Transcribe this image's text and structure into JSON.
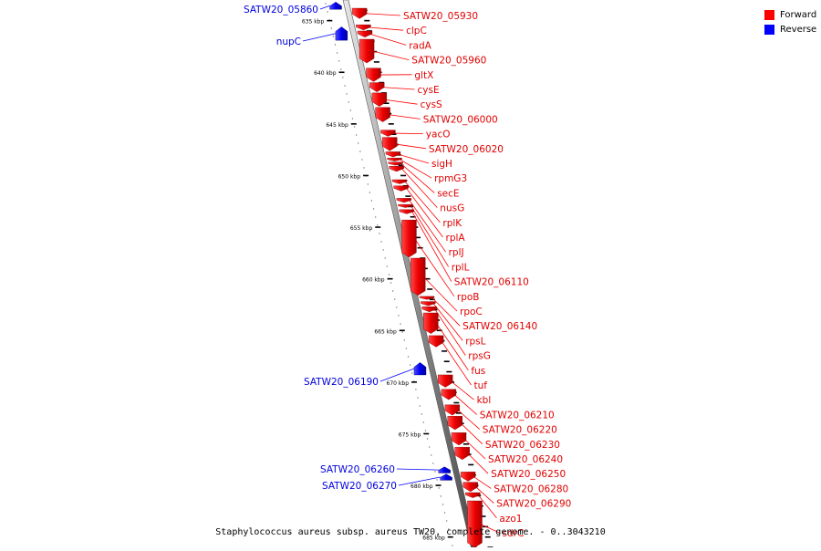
{
  "legend": {
    "forward_label": "Forward",
    "reverse_label": "Reverse",
    "forward_color": "#ff0000",
    "reverse_color": "#0000ff"
  },
  "caption": "Staphylococcus aureus subsp. aureus TW20, complete genome. - 0..3043210",
  "axis": {
    "unit": "kbp",
    "start_kbp": 633,
    "end_kbp": 686,
    "ticks_kbp": [
      635,
      640,
      645,
      650,
      655,
      660,
      665,
      670,
      675,
      680,
      685
    ]
  },
  "forward_genes": [
    {
      "name": "SATW20_05930",
      "start_kbp": 633.8,
      "end_kbp": 634.8
    },
    {
      "name": "clpC",
      "start_kbp": 635.4,
      "end_kbp": 635.9
    },
    {
      "name": "radA",
      "start_kbp": 636.0,
      "end_kbp": 636.6
    },
    {
      "name": "SATW20_05960",
      "start_kbp": 636.8,
      "end_kbp": 639.1
    },
    {
      "name": "gltX",
      "start_kbp": 639.6,
      "end_kbp": 640.9
    },
    {
      "name": "cysE",
      "start_kbp": 641.0,
      "end_kbp": 641.9
    },
    {
      "name": "cysS",
      "start_kbp": 642.0,
      "end_kbp": 643.3
    },
    {
      "name": "SATW20_06000",
      "start_kbp": 643.4,
      "end_kbp": 644.8
    },
    {
      "name": "yacO",
      "start_kbp": 645.6,
      "end_kbp": 646.2
    },
    {
      "name": "SATW20_06020",
      "start_kbp": 646.3,
      "end_kbp": 647.6
    },
    {
      "name": "sigH",
      "start_kbp": 647.7,
      "end_kbp": 648.2
    },
    {
      "name": "rpmG3",
      "start_kbp": 648.3,
      "end_kbp": 648.6
    },
    {
      "name": "secE",
      "start_kbp": 648.7,
      "end_kbp": 649.0
    },
    {
      "name": "nusG",
      "start_kbp": 649.1,
      "end_kbp": 649.6
    },
    {
      "name": "rplK",
      "start_kbp": 650.4,
      "end_kbp": 650.8
    },
    {
      "name": "rplA",
      "start_kbp": 651.0,
      "end_kbp": 651.5
    },
    {
      "name": "rplJ",
      "start_kbp": 652.2,
      "end_kbp": 652.6
    },
    {
      "name": "rplL",
      "start_kbp": 652.8,
      "end_kbp": 653.1
    },
    {
      "name": "SATW20_06110",
      "start_kbp": 653.3,
      "end_kbp": 653.7
    },
    {
      "name": "rpoB",
      "start_kbp": 654.3,
      "end_kbp": 657.9
    },
    {
      "name": "rpoC",
      "start_kbp": 658.0,
      "end_kbp": 661.6
    },
    {
      "name": "SATW20_06140",
      "start_kbp": 661.7,
      "end_kbp": 662.0
    },
    {
      "name": "rpsL",
      "start_kbp": 662.2,
      "end_kbp": 662.6
    },
    {
      "name": "rpsG",
      "start_kbp": 662.7,
      "end_kbp": 663.2
    },
    {
      "name": "fus",
      "start_kbp": 663.3,
      "end_kbp": 665.3
    },
    {
      "name": "tuf",
      "start_kbp": 665.5,
      "end_kbp": 666.6
    },
    {
      "name": "kbl",
      "start_kbp": 669.3,
      "end_kbp": 670.5
    },
    {
      "name": "SATW20_06210",
      "start_kbp": 670.7,
      "end_kbp": 671.7
    },
    {
      "name": "SATW20_06220",
      "start_kbp": 672.2,
      "end_kbp": 673.2
    },
    {
      "name": "SATW20_06230",
      "start_kbp": 673.3,
      "end_kbp": 674.6
    },
    {
      "name": "SATW20_06240",
      "start_kbp": 674.9,
      "end_kbp": 676.1
    },
    {
      "name": "SATW20_06250",
      "start_kbp": 676.3,
      "end_kbp": 677.5
    },
    {
      "name": "SATW20_06280",
      "start_kbp": 678.7,
      "end_kbp": 679.6
    },
    {
      "name": "SATW20_06290",
      "start_kbp": 679.7,
      "end_kbp": 680.6
    },
    {
      "name": "azo1",
      "start_kbp": 680.7,
      "end_kbp": 681.2
    },
    {
      "name": "sdrC",
      "start_kbp": 681.5,
      "end_kbp": 686.0
    }
  ],
  "reverse_genes": [
    {
      "name": "SATW20_05860",
      "start_kbp": 633.2,
      "end_kbp": 633.9
    },
    {
      "name": "nupC",
      "start_kbp": 635.6,
      "end_kbp": 636.9
    },
    {
      "name": "SATW20_06190",
      "start_kbp": 668.1,
      "end_kbp": 669.3
    },
    {
      "name": "SATW20_06260",
      "start_kbp": 678.2,
      "end_kbp": 678.8
    },
    {
      "name": "SATW20_06270",
      "start_kbp": 678.9,
      "end_kbp": 679.5
    }
  ]
}
